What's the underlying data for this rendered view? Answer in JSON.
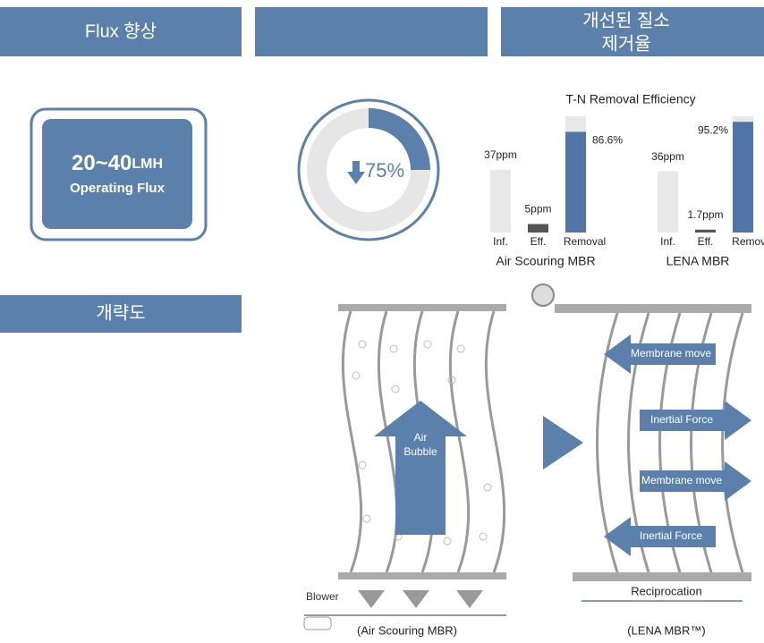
{
  "header": {
    "col1": "Flux 향상",
    "col3": [
      "개선된 질소",
      "제거율"
    ]
  },
  "flux_box": {
    "value": "20~40",
    "unit": "LMH",
    "label": "Operating Flux"
  },
  "donut": {
    "value": 75,
    "label": "75%"
  },
  "chart": {
    "title": "T-N Removal Efficiency",
    "groups": [
      {
        "name": "Air Scouring MBR",
        "categories": [
          "Inf.",
          "Eff.",
          "Removal"
        ],
        "values": [
          37,
          5,
          86.6
        ],
        "value_labels": [
          "37ppm",
          "5ppm",
          "86.6%"
        ]
      },
      {
        "name": "LENA MBR",
        "categories": [
          "Inf.",
          "Eff.",
          "Remova"
        ],
        "values": [
          36,
          1.7,
          95.2
        ],
        "value_labels": [
          "36ppm",
          "1.7ppm",
          "95.2%"
        ]
      }
    ]
  },
  "section2": {
    "title": "개략도"
  },
  "diagram": {
    "air_bubble": [
      "Air",
      "Bubble"
    ],
    "blower": "Blower",
    "left_caption": "(Air Scouring MBR)",
    "right_caption": "(LENA MBR™)",
    "reciprocation": "Reciprocation",
    "arrows": [
      "Membrane move",
      "Inertial Force",
      "Membrane move",
      "Inertial Force"
    ]
  }
}
